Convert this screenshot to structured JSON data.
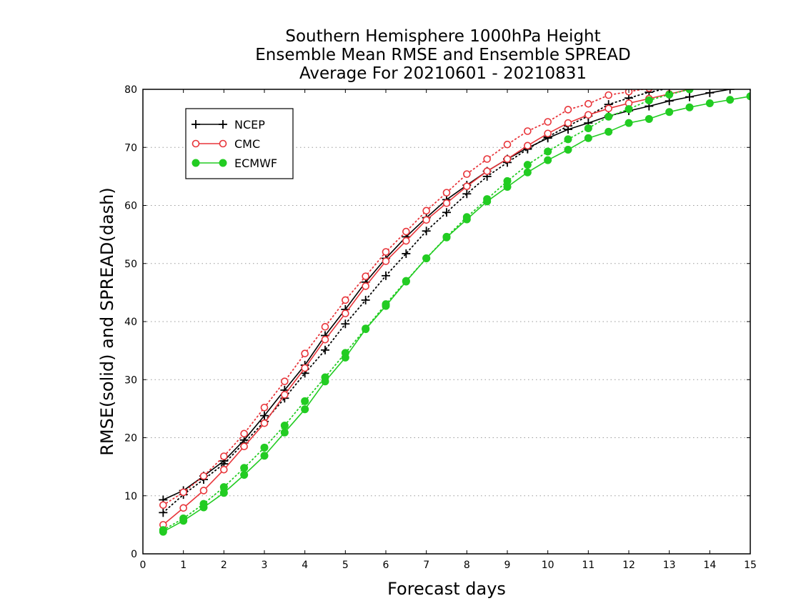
{
  "chart_data": {
    "type": "line",
    "title": [
      "Southern Hemisphere 1000hPa Height",
      "Ensemble Mean RMSE and Ensemble SPREAD",
      "Average For 20210601 - 20210831"
    ],
    "xlabel": "Forecast days",
    "ylabel": "RMSE(solid) and SPREAD(dash)",
    "xlim": [
      0,
      15
    ],
    "ylim": [
      0,
      80
    ],
    "xticks": [
      0,
      1,
      2,
      3,
      4,
      5,
      6,
      7,
      8,
      9,
      10,
      11,
      12,
      13,
      14,
      15
    ],
    "yticks": [
      0,
      10,
      20,
      30,
      40,
      50,
      60,
      70,
      80
    ],
    "grid": "horizontal dotted",
    "legend_position": "top-left",
    "x": [
      0.5,
      1,
      1.5,
      2,
      2.5,
      3,
      3.5,
      4,
      4.5,
      5,
      5.5,
      6,
      6.5,
      7,
      7.5,
      8,
      8.5,
      9,
      9.5,
      10,
      10.5,
      11,
      11.5,
      12,
      12.5,
      13,
      13.5,
      14,
      14.5,
      15
    ],
    "series": [
      {
        "name": "NCEP",
        "color": "#000000",
        "marker": "plus",
        "rmse": [
          9.3,
          10.9,
          13.4,
          16.0,
          19.6,
          23.8,
          28.2,
          32.5,
          37.6,
          42.1,
          46.8,
          50.9,
          54.6,
          57.9,
          61.0,
          63.5,
          65.9,
          68.0,
          69.9,
          71.6,
          73.1,
          74.2,
          75.4,
          76.3,
          77.1,
          78.0,
          78.7,
          79.4,
          80.0,
          80.5
        ],
        "spread": [
          7.1,
          10.2,
          12.8,
          15.5,
          19.1,
          22.8,
          26.8,
          31.1,
          35.1,
          39.6,
          43.7,
          47.9,
          51.7,
          55.6,
          58.8,
          62.0,
          65.0,
          67.4,
          69.7,
          71.8,
          73.7,
          75.4,
          77.4,
          78.5,
          79.5,
          80.2,
          80.9,
          81.5,
          82.0,
          82.5
        ]
      },
      {
        "name": "CMC",
        "color": "#e8353a",
        "marker": "circle-open",
        "rmse": [
          5.0,
          7.9,
          10.9,
          14.5,
          18.5,
          22.5,
          27.4,
          32.0,
          36.9,
          41.4,
          46.1,
          50.4,
          53.9,
          57.5,
          60.4,
          63.3,
          65.9,
          68.0,
          70.3,
          72.4,
          74.2,
          75.6,
          76.7,
          77.6,
          78.4,
          79.2,
          80.0,
          80.6,
          81.2,
          81.8
        ],
        "spread": [
          8.4,
          10.6,
          13.4,
          16.8,
          20.7,
          25.2,
          29.7,
          34.5,
          39.1,
          43.7,
          47.8,
          52.0,
          55.5,
          59.1,
          62.2,
          65.4,
          68.0,
          70.5,
          72.8,
          74.4,
          76.5,
          77.5,
          79.0,
          79.6,
          80.2,
          80.8,
          81.3,
          81.8,
          82.2,
          82.6
        ]
      },
      {
        "name": "ECMWF",
        "color": "#22cc22",
        "marker": "circle-filled",
        "rmse": [
          3.8,
          5.7,
          8.0,
          10.5,
          13.6,
          16.9,
          20.9,
          24.9,
          29.7,
          33.8,
          38.7,
          42.7,
          46.9,
          50.9,
          54.5,
          57.6,
          60.7,
          63.2,
          65.7,
          67.8,
          69.6,
          71.6,
          72.7,
          74.2,
          74.9,
          76.1,
          76.9,
          77.6,
          78.2,
          78.8
        ],
        "spread": [
          4.1,
          6.1,
          8.6,
          11.5,
          14.8,
          18.3,
          22.1,
          26.3,
          30.4,
          34.6,
          38.8,
          43.0,
          47.0,
          50.9,
          54.6,
          58.0,
          61.1,
          64.2,
          67.0,
          69.3,
          71.4,
          73.3,
          75.3,
          76.6,
          78.1,
          79.1,
          80.0,
          80.6,
          81.2,
          81.8
        ]
      }
    ]
  }
}
